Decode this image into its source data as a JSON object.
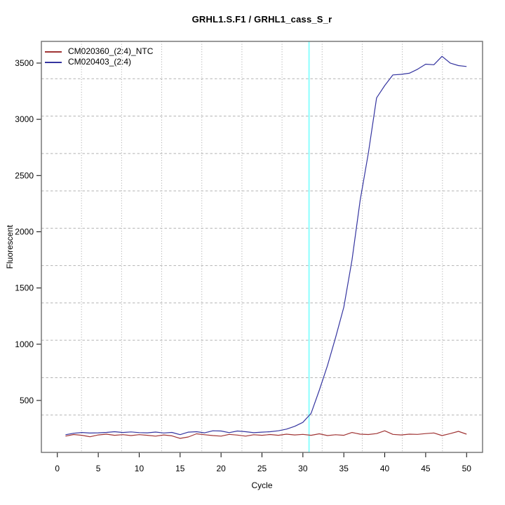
{
  "chart_data": {
    "type": "line",
    "title": "GRHL1.S.F1 / GRHL1_cass_S_r",
    "xlabel": "Cycle",
    "ylabel": "Fluorescent",
    "x": [
      1,
      2,
      3,
      4,
      5,
      6,
      7,
      8,
      9,
      10,
      11,
      12,
      13,
      14,
      15,
      16,
      17,
      18,
      19,
      20,
      21,
      22,
      23,
      24,
      25,
      26,
      27,
      28,
      29,
      30,
      31,
      32,
      33,
      34,
      35,
      36,
      37,
      38,
      39,
      40,
      41,
      42,
      43,
      44,
      45,
      46,
      47,
      48,
      49,
      50
    ],
    "series": [
      {
        "name": "CM020360_(2:4)_NTC",
        "color": "#a03434",
        "values": [
          183,
          197,
          190,
          177,
          193,
          200,
          190,
          196,
          188,
          196,
          190,
          183,
          193,
          185,
          163,
          175,
          203,
          195,
          188,
          183,
          198,
          192,
          183,
          195,
          190,
          197,
          190,
          200,
          193,
          198,
          190,
          203,
          188,
          195,
          190,
          215,
          200,
          197,
          205,
          230,
          198,
          193,
          200,
          198,
          205,
          211,
          188,
          205,
          225,
          200
        ]
      },
      {
        "name": "CM020403_(2:4)",
        "color": "#3535a0",
        "values": [
          195,
          208,
          215,
          210,
          212,
          216,
          222,
          215,
          220,
          214,
          212,
          219,
          211,
          216,
          196,
          218,
          222,
          212,
          230,
          228,
          214,
          228,
          222,
          213,
          218,
          222,
          230,
          245,
          270,
          305,
          385,
          590,
          810,
          1060,
          1330,
          1750,
          2280,
          2700,
          3190,
          3300,
          3395,
          3400,
          3410,
          3445,
          3490,
          3485,
          3560,
          3500,
          3478,
          3470
        ]
      }
    ],
    "xlim": [
      -1.95,
      51.95
    ],
    "ylim": [
      38,
      3693
    ],
    "x_ticks": [
      0,
      5,
      10,
      15,
      20,
      25,
      30,
      35,
      40,
      45,
      50
    ],
    "y_ticks": [
      500,
      1000,
      1500,
      2000,
      2500,
      3000,
      3500
    ],
    "threshold_line": {
      "x": 30.75,
      "color": "#8cffff"
    },
    "grid": {
      "on": true,
      "divisions": 11,
      "v_color": "#a3a3a3",
      "h_color": "#b4b4b4"
    },
    "box_color": "#6e6e6e",
    "legend_position": "top-left"
  }
}
